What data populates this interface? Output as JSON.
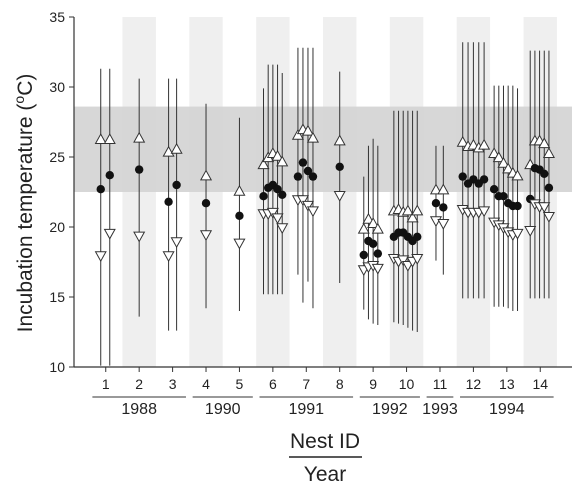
{
  "chart_data": {
    "type": "scatter",
    "ylabel_main": "Incubation temperature (",
    "ylabel_sup": "o",
    "ylabel_tail": "C)",
    "xlabel_top": "Nest ID",
    "xlabel_bottom": "Year",
    "ylim": [
      10,
      35
    ],
    "yticks": [
      10,
      15,
      20,
      25,
      30,
      35
    ],
    "band": [
      22.5,
      28.6
    ],
    "band_color": "#d3d3d3",
    "stripe_color": "#efefef",
    "nests": [
      {
        "label": "1",
        "x_start": 0.5,
        "x_end": 1.5
      },
      {
        "label": "2",
        "x_start": 1.5,
        "x_end": 2.5
      },
      {
        "label": "3",
        "x_start": 2.5,
        "x_end": 3.5
      },
      {
        "label": "4",
        "x_start": 3.5,
        "x_end": 4.5
      },
      {
        "label": "5",
        "x_start": 4.5,
        "x_end": 5.5
      },
      {
        "label": "6",
        "x_start": 5.5,
        "x_end": 6.5
      },
      {
        "label": "7",
        "x_start": 6.5,
        "x_end": 7.5
      },
      {
        "label": "8",
        "x_start": 7.5,
        "x_end": 8.5
      },
      {
        "label": "9",
        "x_start": 8.5,
        "x_end": 9.5
      },
      {
        "label": "10",
        "x_start": 9.5,
        "x_end": 10.5
      },
      {
        "label": "11",
        "x_start": 10.5,
        "x_end": 11.5
      },
      {
        "label": "12",
        "x_start": 11.5,
        "x_end": 12.5
      },
      {
        "label": "13",
        "x_start": 12.5,
        "x_end": 13.5
      },
      {
        "label": "14",
        "x_start": 13.5,
        "x_end": 14.5
      }
    ],
    "years": [
      {
        "label": "1988",
        "from": 0.6,
        "to": 3.4
      },
      {
        "label": "1990",
        "from": 3.6,
        "to": 5.4
      },
      {
        "label": "1991",
        "from": 5.6,
        "to": 8.4
      },
      {
        "label": "1992",
        "from": 8.6,
        "to": 10.4
      },
      {
        "label": "1993",
        "from": 10.6,
        "to": 11.4
      },
      {
        "label": "1994",
        "from": 11.6,
        "to": 14.4
      }
    ],
    "groups": [
      {
        "nest": "1",
        "points": [
          {
            "x": 0.85,
            "mean": 22.7,
            "max": 26.3,
            "min": 17.9,
            "hi": 31.3,
            "lo": 10.1
          },
          {
            "x": 1.12,
            "mean": 23.7,
            "max": 26.3,
            "min": 19.5,
            "hi": 31.3,
            "lo": 10.1
          }
        ]
      },
      {
        "nest": "2",
        "points": [
          {
            "x": 2.0,
            "mean": 24.1,
            "max": 26.4,
            "min": 19.3,
            "hi": 30.6,
            "lo": 13.6
          }
        ]
      },
      {
        "nest": "3",
        "points": [
          {
            "x": 2.88,
            "mean": 21.8,
            "max": 25.4,
            "min": 17.9,
            "hi": 30.6,
            "lo": 12.6
          },
          {
            "x": 3.12,
            "mean": 23.0,
            "max": 25.6,
            "min": 18.9,
            "hi": 30.6,
            "lo": 12.6
          }
        ]
      },
      {
        "nest": "4",
        "points": [
          {
            "x": 4.0,
            "mean": 21.7,
            "max": 23.7,
            "min": 19.4,
            "hi": 28.8,
            "lo": 14.2
          }
        ]
      },
      {
        "nest": "5",
        "points": [
          {
            "x": 5.0,
            "mean": 20.8,
            "max": 22.6,
            "min": 18.8,
            "hi": 27.8,
            "lo": 14.0
          }
        ]
      },
      {
        "nest": "6",
        "points": [
          {
            "x": 5.72,
            "mean": 22.2,
            "max": 24.5,
            "min": 20.9,
            "hi": 29.9,
            "lo": 15.2
          },
          {
            "x": 5.86,
            "mean": 22.8,
            "max": 25.0,
            "min": 20.9,
            "hi": 31.6,
            "lo": 15.2
          },
          {
            "x": 6.0,
            "mean": 23.0,
            "max": 25.3,
            "min": 21.0,
            "hi": 31.6,
            "lo": 15.2
          },
          {
            "x": 6.14,
            "mean": 22.7,
            "max": 25.1,
            "min": 20.6,
            "hi": 31.6,
            "lo": 15.2
          },
          {
            "x": 6.28,
            "mean": 22.3,
            "max": 24.7,
            "min": 19.9,
            "hi": 31.0,
            "lo": 15.2
          }
        ]
      },
      {
        "nest": "7",
        "points": [
          {
            "x": 6.75,
            "mean": 23.6,
            "max": 26.6,
            "min": 21.9,
            "hi": 32.8,
            "lo": 16.6
          },
          {
            "x": 6.9,
            "mean": 24.6,
            "max": 27.0,
            "min": 21.9,
            "hi": 32.8,
            "lo": 14.6
          },
          {
            "x": 7.05,
            "mean": 24.0,
            "max": 26.9,
            "min": 21.5,
            "hi": 32.8,
            "lo": 16.1
          },
          {
            "x": 7.2,
            "mean": 23.6,
            "max": 26.4,
            "min": 21.1,
            "hi": 32.8,
            "lo": 14.2
          }
        ]
      },
      {
        "nest": "8",
        "points": [
          {
            "x": 8.0,
            "mean": 24.3,
            "max": 26.2,
            "min": 22.2,
            "hi": 31.1,
            "lo": 16.0
          }
        ]
      },
      {
        "nest": "9",
        "points": [
          {
            "x": 8.72,
            "mean": 18.0,
            "max": 19.9,
            "min": 16.9,
            "hi": 23.6,
            "lo": 14.1
          },
          {
            "x": 8.86,
            "mean": 19.0,
            "max": 20.6,
            "min": 17.1,
            "hi": 25.8,
            "lo": 13.4
          },
          {
            "x": 9.0,
            "mean": 18.8,
            "max": 20.3,
            "min": 17.2,
            "hi": 26.3,
            "lo": 13.1
          },
          {
            "x": 9.14,
            "mean": 18.1,
            "max": 19.9,
            "min": 17.0,
            "hi": 25.8,
            "lo": 13.0
          }
        ]
      },
      {
        "nest": "10",
        "points": [
          {
            "x": 9.62,
            "mean": 19.3,
            "max": 21.2,
            "min": 17.7,
            "hi": 28.3,
            "lo": 13.2
          },
          {
            "x": 9.76,
            "mean": 19.6,
            "max": 21.3,
            "min": 17.5,
            "hi": 28.3,
            "lo": 13.1
          },
          {
            "x": 9.9,
            "mean": 19.6,
            "max": 21.1,
            "min": 17.6,
            "hi": 28.3,
            "lo": 13.0
          },
          {
            "x": 10.04,
            "mean": 19.3,
            "max": 21.2,
            "min": 17.2,
            "hi": 28.3,
            "lo": 12.8
          },
          {
            "x": 10.18,
            "mean": 19.0,
            "max": 20.7,
            "min": 17.5,
            "hi": 28.3,
            "lo": 12.6
          },
          {
            "x": 10.32,
            "mean": 19.3,
            "max": 21.2,
            "min": 17.7,
            "hi": 28.3,
            "lo": 12.5
          }
        ]
      },
      {
        "nest": "11",
        "points": [
          {
            "x": 10.88,
            "mean": 21.7,
            "max": 22.7,
            "min": 20.4,
            "hi": 25.8,
            "lo": 17.6
          },
          {
            "x": 11.1,
            "mean": 21.4,
            "max": 22.7,
            "min": 20.2,
            "hi": 25.8,
            "lo": 16.6
          }
        ]
      },
      {
        "nest": "12",
        "points": [
          {
            "x": 11.68,
            "mean": 23.6,
            "max": 26.1,
            "min": 21.2,
            "hi": 33.2,
            "lo": 14.9
          },
          {
            "x": 11.84,
            "mean": 23.1,
            "max": 25.8,
            "min": 21.0,
            "hi": 33.2,
            "lo": 14.9
          },
          {
            "x": 12.0,
            "mean": 23.4,
            "max": 25.9,
            "min": 21.0,
            "hi": 33.2,
            "lo": 14.9
          },
          {
            "x": 12.16,
            "mean": 23.1,
            "max": 25.7,
            "min": 21.0,
            "hi": 33.2,
            "lo": 14.9
          },
          {
            "x": 12.32,
            "mean": 23.4,
            "max": 25.9,
            "min": 21.1,
            "hi": 33.2,
            "lo": 14.9
          }
        ]
      },
      {
        "nest": "13",
        "points": [
          {
            "x": 12.62,
            "mean": 22.7,
            "max": 25.3,
            "min": 20.3,
            "hi": 30.1,
            "lo": 14.3
          },
          {
            "x": 12.76,
            "mean": 22.2,
            "max": 25.0,
            "min": 20.1,
            "hi": 30.1,
            "lo": 14.3
          },
          {
            "x": 12.9,
            "mean": 22.2,
            "max": 24.6,
            "min": 19.9,
            "hi": 30.1,
            "lo": 14.3
          },
          {
            "x": 13.04,
            "mean": 21.7,
            "max": 24.2,
            "min": 19.6,
            "hi": 30.1,
            "lo": 14.2
          },
          {
            "x": 13.18,
            "mean": 21.5,
            "max": 23.9,
            "min": 19.4,
            "hi": 30.1,
            "lo": 14.0
          },
          {
            "x": 13.32,
            "mean": 21.5,
            "max": 23.7,
            "min": 19.5,
            "hi": 29.9,
            "lo": 14.0
          }
        ]
      },
      {
        "nest": "14",
        "points": [
          {
            "x": 13.7,
            "mean": 22.0,
            "max": 24.5,
            "min": 19.7,
            "hi": 32.6,
            "lo": 14.9
          },
          {
            "x": 13.84,
            "mean": 24.2,
            "max": 26.2,
            "min": 21.6,
            "hi": 32.6,
            "lo": 14.9
          },
          {
            "x": 13.98,
            "mean": 24.1,
            "max": 26.2,
            "min": 21.4,
            "hi": 32.6,
            "lo": 14.9
          },
          {
            "x": 14.12,
            "mean": 23.8,
            "max": 26.0,
            "min": 21.4,
            "hi": 32.6,
            "lo": 14.9
          },
          {
            "x": 14.26,
            "mean": 22.8,
            "max": 25.3,
            "min": 20.7,
            "hi": 32.6,
            "lo": 14.9
          }
        ]
      }
    ]
  }
}
